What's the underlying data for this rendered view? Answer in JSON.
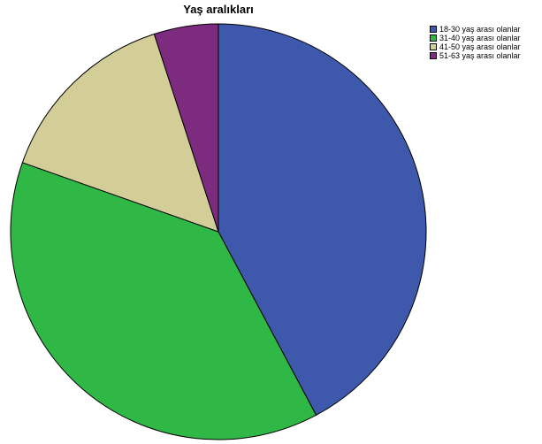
{
  "chart_data": {
    "type": "pie",
    "title": "Yaş aralıkları",
    "categories": [
      "18-30 yaş arası olanlar",
      "31-40 yaş arası olanlar",
      "41-50 yaş arası olanlar",
      "51-63 yaş arası olanlar"
    ],
    "values": [
      42.2,
      38.2,
      14.6,
      5.0
    ],
    "colors": [
      "#3e58ac",
      "#2fb846",
      "#d3ce98",
      "#7d2b7e"
    ],
    "legend_position": "top-right"
  }
}
